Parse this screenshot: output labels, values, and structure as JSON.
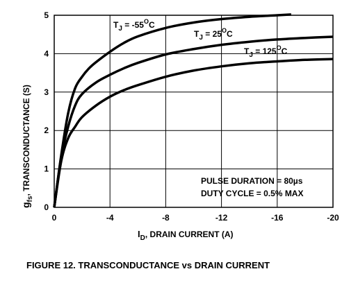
{
  "chart_data": {
    "type": "line",
    "title": "",
    "caption": "FIGURE 12.  TRANSCONDUCTANCE vs DRAIN CURRENT",
    "xlabel": "I_D, DRAIN CURRENT (A)",
    "ylabel": "g_fs, TRANSCONDUCTANCE (S)",
    "xlim": [
      0,
      -20
    ],
    "ylim": [
      0,
      5
    ],
    "xticks": [
      0,
      -4,
      -8,
      -12,
      -16,
      -20
    ],
    "yticks": [
      0,
      1,
      2,
      3,
      4,
      5
    ],
    "grid": true,
    "annotations": [
      "PULSE DURATION = 80µs",
      "DUTY CYCLE = 0.5% MAX"
    ],
    "series": [
      {
        "name": "T_J = -55°C",
        "x": [
          0,
          -0.5,
          -1,
          -1.5,
          -2,
          -2.5,
          -3,
          -4,
          -5,
          -6,
          -8,
          -10,
          -12,
          -14,
          -16,
          -17
        ],
        "y": [
          0,
          1.35,
          2.45,
          3.1,
          3.4,
          3.62,
          3.78,
          4.05,
          4.28,
          4.45,
          4.67,
          4.81,
          4.9,
          4.96,
          5.0,
          5.02
        ]
      },
      {
        "name": "T_J = 25°C",
        "x": [
          0,
          -0.5,
          -1,
          -1.5,
          -2,
          -3,
          -4,
          -5,
          -6,
          -8,
          -10,
          -12,
          -14,
          -16,
          -18,
          -20
        ],
        "y": [
          0,
          1.3,
          2.1,
          2.65,
          2.95,
          3.25,
          3.45,
          3.62,
          3.76,
          3.98,
          4.12,
          4.23,
          4.31,
          4.37,
          4.41,
          4.44
        ]
      },
      {
        "name": "T_J = 125°C",
        "x": [
          0,
          -0.5,
          -1,
          -1.5,
          -2,
          -3,
          -4,
          -5,
          -6,
          -8,
          -10,
          -12,
          -14,
          -16,
          -18,
          -20
        ],
        "y": [
          0,
          1.2,
          1.8,
          2.1,
          2.35,
          2.65,
          2.88,
          3.05,
          3.18,
          3.4,
          3.56,
          3.67,
          3.75,
          3.8,
          3.84,
          3.86
        ]
      }
    ]
  },
  "labels": {
    "series_sub": "J",
    "series_prefix": "T",
    "eq_m55": " = -55",
    "eq_25": " = 25",
    "eq_125": " = 125",
    "deg_sup": "O",
    "deg_c": "C",
    "y_main": "g",
    "y_sub": "fs",
    "y_rest": ", TRANSCONDUCTANCE (S)",
    "x_main": "I",
    "x_sub": "D",
    "x_rest": ", DRAIN CURRENT (A)"
  }
}
